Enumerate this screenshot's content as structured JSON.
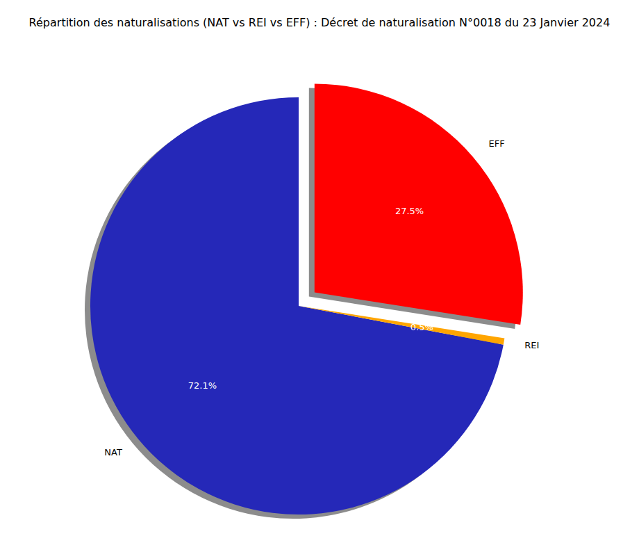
{
  "chart_data": {
    "type": "pie",
    "title": "Répartition des naturalisations (NAT vs REI vs EFF) : Décret de naturalisation N°0018 du 23 Janvier 2024",
    "categories": [
      "NAT",
      "REI",
      "EFF"
    ],
    "values": [
      72.1,
      0.5,
      27.5
    ],
    "value_labels": [
      "72.1%",
      "0.5%",
      "27.5%"
    ],
    "colors": [
      "#2528b8",
      "#ffa500",
      "#ff0000"
    ],
    "data_labels": true
  }
}
